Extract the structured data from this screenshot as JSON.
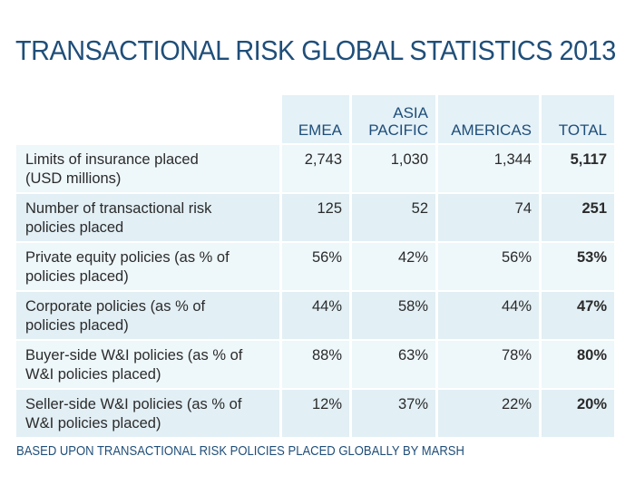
{
  "title": "TRANSACTIONAL RISK GLOBAL STATISTICS 2013",
  "table": {
    "headers": {
      "emea": "EMEA",
      "asia_pacific_line1": "ASIA",
      "asia_pacific_line2": "PACIFIC",
      "americas": "AMERICAS",
      "total": "TOTAL"
    },
    "rows": [
      {
        "label_line1": "Limits of insurance placed",
        "label_line2": "(USD millions)",
        "emea": "2,743",
        "asia_pacific": "1,030",
        "americas": "1,344",
        "total": "5,117"
      },
      {
        "label_line1": "Number of transactional risk",
        "label_line2": "policies placed",
        "emea": "125",
        "asia_pacific": "52",
        "americas": "74",
        "total": "251"
      },
      {
        "label_line1": "Private equity policies (as % of",
        "label_line2": "policies placed)",
        "emea": "56%",
        "asia_pacific": "42%",
        "americas": "56%",
        "total": "53%"
      },
      {
        "label_line1": "Corporate policies (as % of",
        "label_line2": "policies placed)",
        "emea": "44%",
        "asia_pacific": "58%",
        "americas": "44%",
        "total": "47%"
      },
      {
        "label_line1": "Buyer-side W&I policies (as % of",
        "label_line2": "W&I policies placed)",
        "emea": "88%",
        "asia_pacific": "63%",
        "americas": "78%",
        "total": "80%"
      },
      {
        "label_line1": "Seller-side W&I policies (as % of",
        "label_line2": "W&I policies placed)",
        "emea": "12%",
        "asia_pacific": "37%",
        "americas": "22%",
        "total": "20%"
      }
    ]
  },
  "footer": "BASED UPON TRANSACTIONAL RISK POLICIES PLACED GLOBALLY BY MARSH",
  "colors": {
    "heading_blue": "#1f4e79",
    "header_bg": "#e4f1f7",
    "row_light": "#eef7fa",
    "row_dark": "#e2eff5"
  }
}
